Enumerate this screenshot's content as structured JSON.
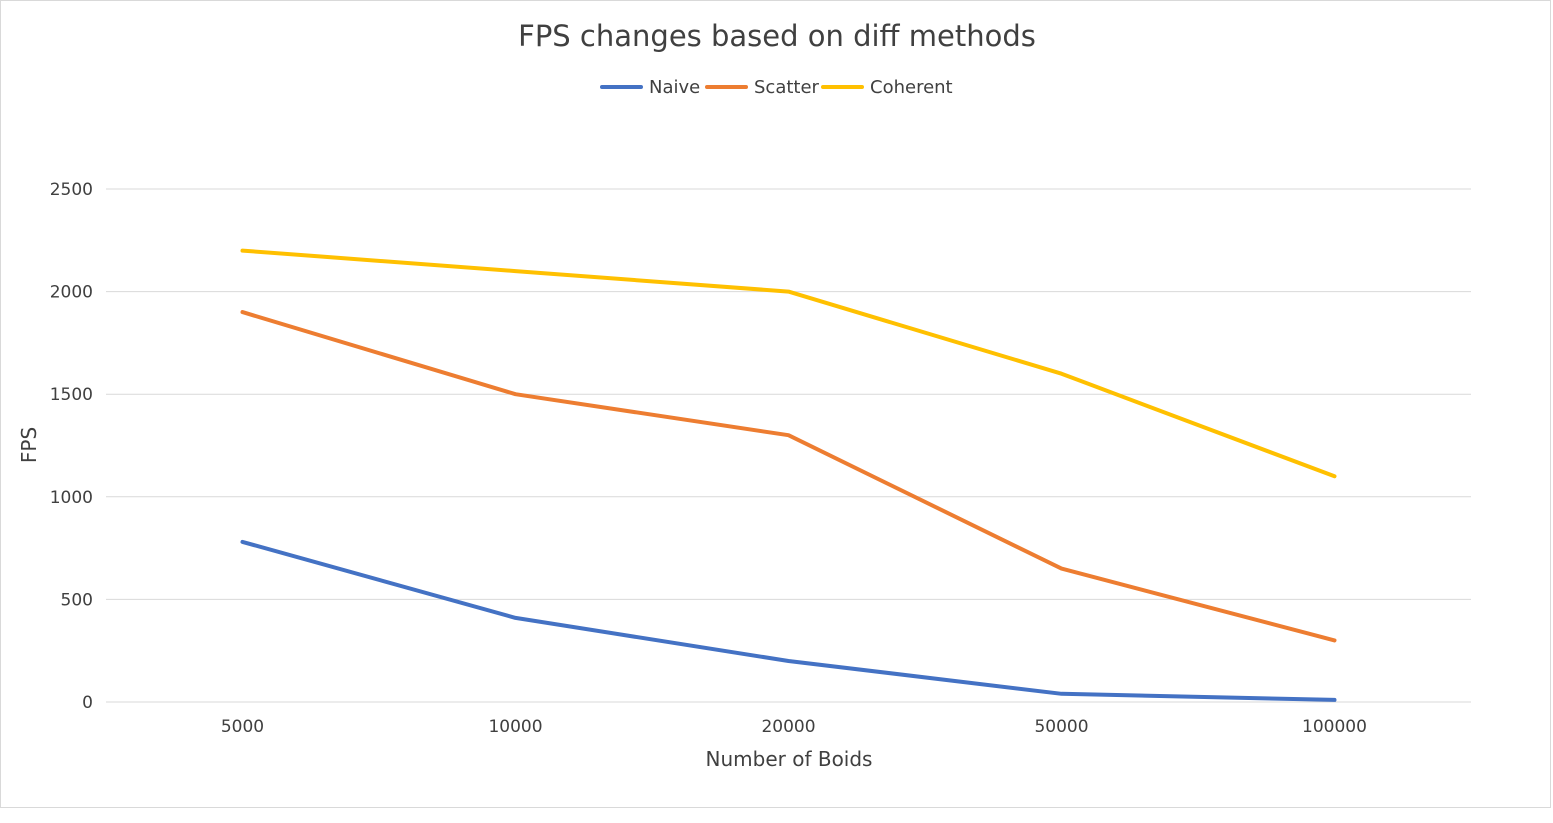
{
  "chart_data": {
    "type": "line",
    "title": "FPS changes based on diff methods",
    "xlabel": "Number of Boids",
    "ylabel": "FPS",
    "categories": [
      "5000",
      "10000",
      "20000",
      "50000",
      "100000"
    ],
    "ylim": [
      0,
      2500
    ],
    "yticks": [
      0,
      500,
      1000,
      1500,
      2000,
      2500
    ],
    "grid": true,
    "legend_position": "top",
    "series": [
      {
        "name": "Naive",
        "color": "#4472C4",
        "values": [
          780,
          410,
          200,
          40,
          10
        ]
      },
      {
        "name": "Scatter",
        "color": "#ED7D31",
        "values": [
          1900,
          1500,
          1300,
          650,
          300
        ]
      },
      {
        "name": "Coherent",
        "color": "#FFC000",
        "values": [
          2200,
          2100,
          2000,
          1600,
          1100
        ]
      }
    ]
  }
}
